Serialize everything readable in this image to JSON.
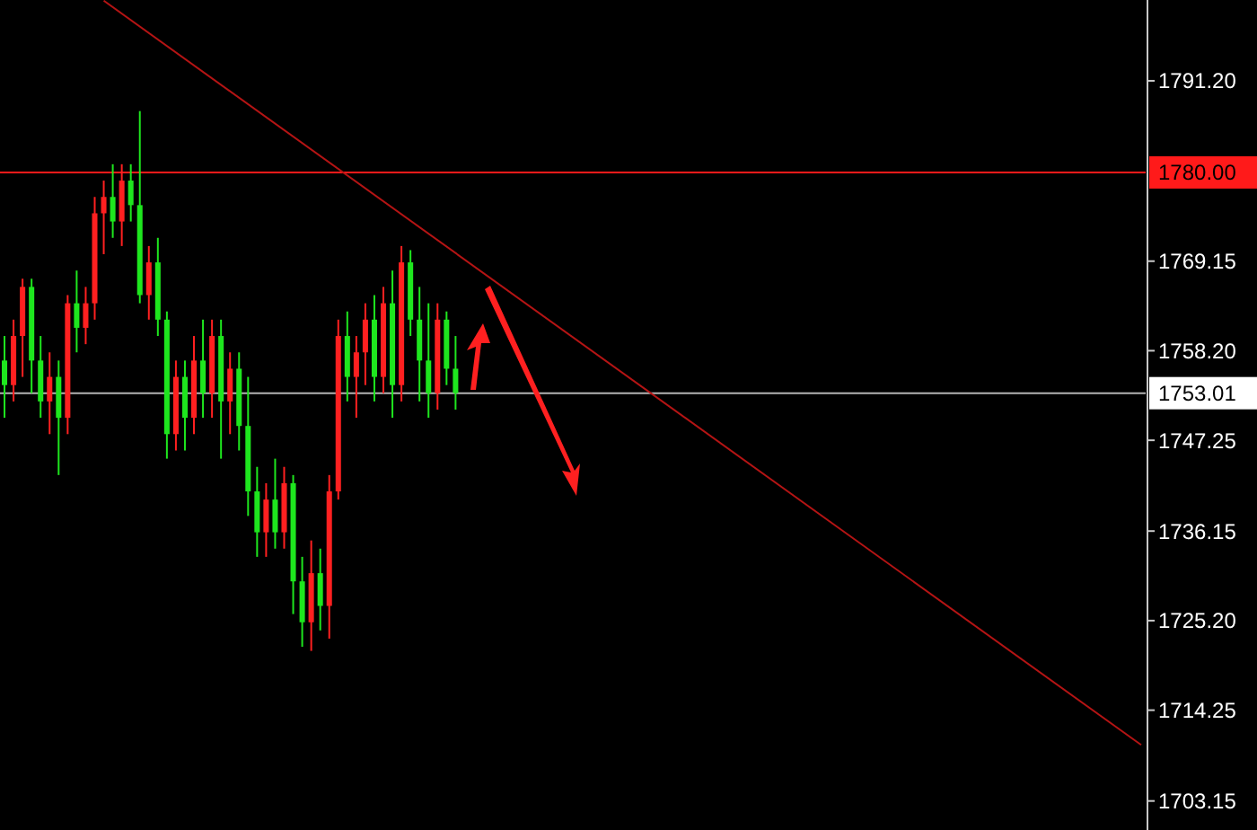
{
  "chart_data": {
    "type": "candlestick",
    "ylim": [
      1699.6,
      1801.08
    ],
    "tick_labels": "y",
    "grid": false,
    "legend": false,
    "categories": [
      null,
      null,
      null,
      null,
      null,
      null,
      null,
      null,
      null,
      null,
      null,
      null,
      null,
      null,
      null,
      null,
      null,
      null,
      null,
      null,
      null,
      null,
      null,
      null,
      null,
      null,
      null,
      null,
      null,
      null,
      null,
      null,
      null,
      null,
      null,
      null,
      null,
      null,
      null,
      null,
      null,
      null,
      null,
      null,
      null,
      null,
      null,
      null,
      null,
      null,
      null,
      null,
      null,
      null,
      null,
      null,
      null,
      null,
      null,
      null,
      null,
      null,
      null,
      null,
      null,
      null,
      null,
      null,
      null,
      null,
      null,
      null,
      null,
      null,
      null,
      null,
      null,
      null,
      null,
      null,
      null,
      null,
      null,
      null,
      null,
      null,
      null,
      null,
      null,
      null,
      null,
      null,
      null,
      null,
      null,
      null,
      null,
      null,
      null,
      null,
      null,
      null,
      null,
      null,
      null,
      null,
      null,
      null,
      null,
      null,
      null,
      null,
      null,
      null,
      null,
      null,
      null,
      null,
      null,
      null,
      null,
      null,
      null,
      null,
      null,
      null,
      null
    ],
    "yticks": [
      {
        "value": 1791.2,
        "label": "1791.20"
      },
      {
        "value": 1769.15,
        "label": "1769.15"
      },
      {
        "value": 1758.2,
        "label": "1758.20"
      },
      {
        "value": 1747.25,
        "label": "1747.25"
      },
      {
        "value": 1736.15,
        "label": "1736.15"
      },
      {
        "value": 1725.2,
        "label": "1725.20"
      },
      {
        "value": 1714.25,
        "label": "1714.25"
      },
      {
        "value": 1703.15,
        "label": "1703.15"
      }
    ],
    "ref_lines": [
      {
        "axis": "y",
        "value": 1780.0,
        "label": "1780.00",
        "color": "#ff1a1a"
      },
      {
        "axis": "y",
        "value": 1753.01,
        "label": "1753.01",
        "color": "#b4b4b4"
      }
    ],
    "ohlc": [
      [
        1757,
        1760,
        1750,
        1754
      ],
      [
        1754,
        1762,
        1752,
        1760
      ],
      [
        1760,
        1767,
        1755,
        1766
      ],
      [
        1766,
        1767,
        1753,
        1757
      ],
      [
        1757,
        1760,
        1750,
        1752
      ],
      [
        1752,
        1758,
        1748,
        1755
      ],
      [
        1755,
        1757,
        1743,
        1750
      ],
      [
        1750,
        1765,
        1748,
        1764
      ],
      [
        1764,
        1768,
        1758,
        1761
      ],
      [
        1761,
        1766,
        1759,
        1764
      ],
      [
        1764,
        1777,
        1762,
        1775
      ],
      [
        1775,
        1779,
        1770,
        1777
      ],
      [
        1777,
        1781,
        1772,
        1774
      ],
      [
        1774,
        1781,
        1771,
        1779
      ],
      [
        1779,
        1781,
        1774,
        1776
      ],
      [
        1776,
        1787.5,
        1764,
        1765
      ],
      [
        1765,
        1771,
        1762,
        1769
      ],
      [
        1769,
        1772,
        1760,
        1762
      ],
      [
        1762,
        1763,
        1745,
        1748
      ],
      [
        1748,
        1757,
        1746,
        1755
      ],
      [
        1755,
        1757,
        1746,
        1750
      ],
      [
        1750,
        1760,
        1748,
        1757
      ],
      [
        1757,
        1762,
        1750,
        1753
      ],
      [
        1753,
        1762,
        1750,
        1760
      ],
      [
        1760,
        1762,
        1745,
        1752
      ],
      [
        1752,
        1758,
        1748,
        1756
      ],
      [
        1756,
        1758,
        1746,
        1749
      ],
      [
        1749,
        1755,
        1738,
        1741
      ],
      [
        1741,
        1744,
        1733,
        1736
      ],
      [
        1736,
        1742,
        1733,
        1740
      ],
      [
        1740,
        1745,
        1734,
        1736
      ],
      [
        1736,
        1744,
        1734,
        1742
      ],
      [
        1742,
        1743,
        1726,
        1730
      ],
      [
        1730,
        1733,
        1722,
        1725
      ],
      [
        1725,
        1735,
        1721.5,
        1731
      ],
      [
        1731,
        1734,
        1724,
        1727
      ],
      [
        1727,
        1743,
        1723,
        1741
      ],
      [
        1741,
        1762,
        1740,
        1760
      ],
      [
        1760,
        1763,
        1752,
        1755
      ],
      [
        1755,
        1760,
        1750,
        1758
      ],
      [
        1758,
        1764,
        1754,
        1762
      ],
      [
        1762,
        1765,
        1752,
        1755
      ],
      [
        1755,
        1766,
        1753,
        1764
      ],
      [
        1764,
        1768,
        1750,
        1754
      ],
      [
        1754,
        1771,
        1752,
        1769
      ],
      [
        1769,
        1770.5,
        1760,
        1762
      ],
      [
        1762,
        1766,
        1752,
        1757
      ],
      [
        1757,
        1764,
        1750,
        1753
      ],
      [
        1753,
        1764,
        1751,
        1762
      ],
      [
        1762,
        1763,
        1754,
        1756
      ],
      [
        1756,
        1760,
        1751,
        1753.01
      ],
      null,
      null,
      null,
      null,
      null,
      null,
      null,
      null,
      null,
      null,
      null,
      null,
      null,
      null,
      null,
      null,
      null,
      null,
      null,
      null,
      null,
      null,
      null,
      null,
      null,
      null,
      null,
      null,
      null,
      null,
      null,
      null,
      null,
      null,
      null,
      null,
      null,
      null,
      null,
      null,
      null,
      null,
      null,
      null,
      null,
      null,
      null,
      null,
      null,
      null,
      null,
      null,
      null,
      null,
      null,
      null,
      null,
      null,
      null,
      null,
      null,
      null,
      null,
      null,
      null,
      null,
      null,
      null,
      null,
      null,
      null,
      null,
      null,
      null,
      null,
      null
    ],
    "colors": [
      "#1ee61e",
      "#ff2020",
      "#ff2020",
      "#1ee61e",
      "#1ee61e",
      "#ff2020",
      "#1ee61e",
      "#ff2020",
      "#1ee61e",
      "#ff2020",
      "#ff2020",
      "#ff2020",
      "#1ee61e",
      "#ff2020",
      "#1ee61e",
      "#1ee61e",
      "#ff2020",
      "#1ee61e",
      "#1ee61e",
      "#ff2020",
      "#1ee61e",
      "#ff2020",
      "#1ee61e",
      "#ff2020",
      "#1ee61e",
      "#ff2020",
      "#1ee61e",
      "#1ee61e",
      "#1ee61e",
      "#ff2020",
      "#1ee61e",
      "#ff2020",
      "#1ee61e",
      "#1ee61e",
      "#ff2020",
      "#1ee61e",
      "#ff2020",
      "#ff2020",
      "#1ee61e",
      "#ff2020",
      "#ff2020",
      "#1ee61e",
      "#ff2020",
      "#1ee61e",
      "#ff2020",
      "#1ee61e",
      "#1ee61e",
      "#1ee61e",
      "#ff2020",
      "#1ee61e",
      "#1ee61e",
      null,
      null,
      null,
      null,
      null,
      null,
      null,
      null,
      null,
      null,
      null,
      null,
      null,
      null,
      null,
      null,
      null,
      null,
      null,
      null,
      null,
      null,
      null,
      null,
      null,
      null,
      null,
      null,
      null,
      null,
      null,
      null,
      null,
      null,
      null,
      null,
      null,
      null,
      null,
      null,
      null,
      null,
      null,
      null,
      null,
      null,
      null,
      null,
      null,
      null,
      null,
      null,
      null,
      null,
      null,
      null,
      null,
      null,
      null,
      null,
      null,
      null,
      null,
      null,
      null,
      null,
      null,
      null,
      null,
      null,
      null,
      null,
      null,
      null,
      null,
      null
    ],
    "series": [
      {
        "type": "line",
        "color": "#b41414",
        "values": [
          null,
          null,
          null,
          null,
          null,
          null,
          null,
          null,
          null,
          null,
          null,
          1801.0,
          null,
          null,
          null,
          null,
          null,
          null,
          null,
          null,
          null,
          null,
          null,
          null,
          null,
          null,
          null,
          null,
          null,
          null,
          null,
          null,
          null,
          null,
          null,
          null,
          null,
          null,
          null,
          null,
          null,
          null,
          null,
          null,
          null,
          null,
          null,
          null,
          null,
          null,
          null,
          null,
          null,
          null,
          null,
          null,
          null,
          null,
          null,
          null,
          null,
          null,
          null,
          null,
          null,
          null,
          null,
          null,
          null,
          null,
          null,
          null,
          null,
          null,
          null,
          null,
          null,
          null,
          null,
          null,
          null,
          null,
          null,
          null,
          null,
          null,
          null,
          null,
          null,
          null,
          null,
          null,
          null,
          null,
          null,
          null,
          null,
          null,
          null,
          null,
          null,
          null,
          null,
          null,
          null,
          null,
          null,
          null,
          null,
          null,
          null,
          null,
          null,
          null,
          null,
          null,
          null,
          null,
          null,
          null,
          null,
          null,
          null,
          null,
          null,
          null,
          1710.0
        ]
      }
    ]
  }
}
